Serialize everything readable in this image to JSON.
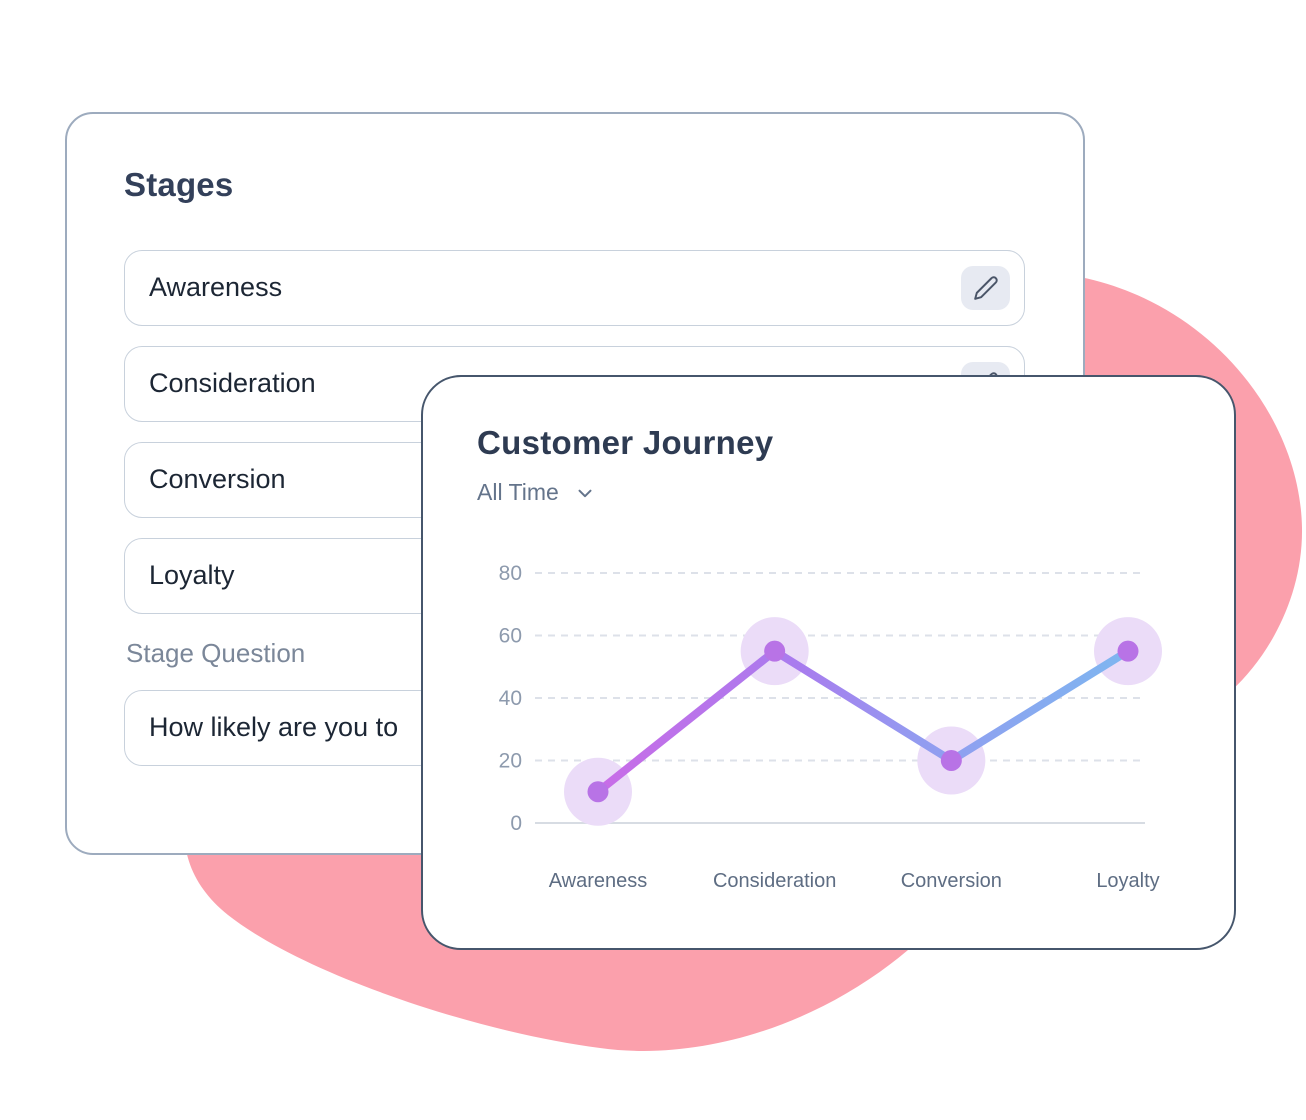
{
  "colors": {
    "blob_pink": "#FBA0AC",
    "line_gradient": [
      "#C96CE7",
      "#A87CEE",
      "#939BF0",
      "#7EB6F0"
    ],
    "point_dot": "#B873E6",
    "point_halo": "#EBDCF8",
    "grid_line": "#DDE1E9",
    "axis_line": "#D7DCE3",
    "y_label": "#8D9AAD",
    "x_label": "#5E6D83"
  },
  "stages_card": {
    "title": "Stages",
    "stages": [
      {
        "label": "Awareness"
      },
      {
        "label": "Consideration"
      },
      {
        "label": "Conversion"
      },
      {
        "label": "Loyalty"
      }
    ],
    "question_label": "Stage Question",
    "question_value": "How likely are you to"
  },
  "journey_card": {
    "title": "Customer Journey",
    "time_filter": {
      "label": "All Time"
    }
  },
  "chart_data": {
    "type": "line",
    "title": "Customer Journey",
    "categories": [
      "Awareness",
      "Consideration",
      "Conversion",
      "Loyalty"
    ],
    "series": [
      {
        "name": "Customer Journey",
        "values": [
          10,
          55,
          20,
          55
        ]
      }
    ],
    "ylim": [
      0,
      80
    ],
    "yticks": [
      0,
      20,
      40,
      60,
      80
    ],
    "grid": "horizontal-dashed",
    "legend": "none"
  }
}
